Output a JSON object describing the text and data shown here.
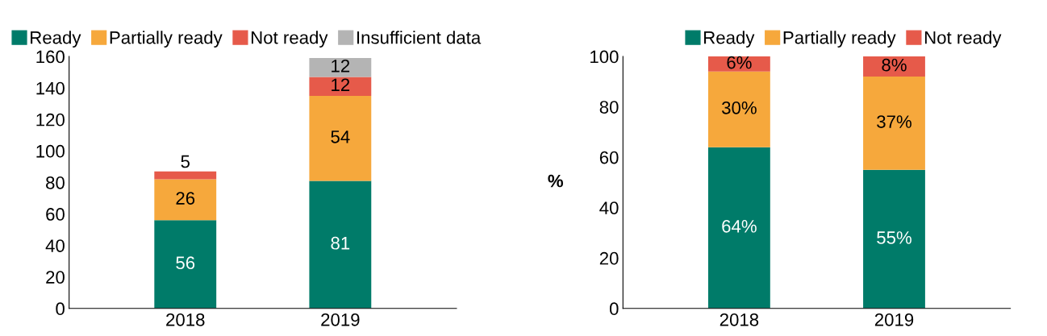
{
  "chart_data": [
    {
      "type": "bar",
      "stacked": true,
      "categories": [
        "2018",
        "2019"
      ],
      "ylim": [
        0,
        160
      ],
      "yticks": [
        0,
        20,
        40,
        60,
        80,
        100,
        120,
        140,
        160
      ],
      "grid": false,
      "legend": "top left",
      "data_labels": true,
      "series": [
        {
          "name": "Ready",
          "color": "#007b69",
          "values": [
            56,
            81
          ]
        },
        {
          "name": "Partially ready",
          "color": "#f6a83c",
          "values": [
            26,
            54
          ]
        },
        {
          "name": "Not ready",
          "color": "#e65a4a",
          "values": [
            5,
            12
          ]
        },
        {
          "name": "Insufficient data",
          "color": "#b4b4b4",
          "values": [
            null,
            12
          ]
        }
      ]
    },
    {
      "type": "bar",
      "stacked": true,
      "categories": [
        "2018",
        "2019"
      ],
      "ylabel": "%",
      "ylim": [
        0,
        100
      ],
      "yticks": [
        0,
        20,
        40,
        60,
        80,
        100
      ],
      "grid": false,
      "legend": "top right",
      "series": [
        {
          "name": "Ready",
          "color": "#007b69",
          "values": [
            64,
            55
          ],
          "value_labels": [
            "64%",
            "55%"
          ]
        },
        {
          "name": "Partially ready",
          "color": "#f6a83c",
          "values": [
            30,
            37
          ],
          "value_labels": [
            "30%",
            "37%"
          ]
        },
        {
          "name": "Not ready",
          "color": "#e65a4a",
          "values": [
            6,
            8
          ],
          "value_labels": [
            "6%",
            "8%"
          ]
        }
      ]
    }
  ]
}
